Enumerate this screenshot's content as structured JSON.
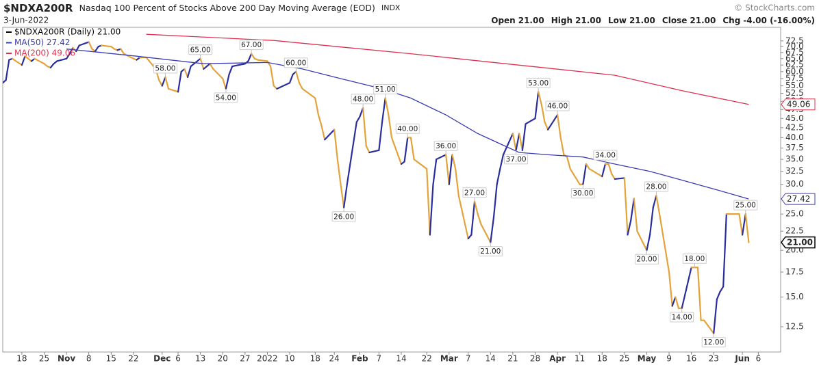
{
  "chart_data": {
    "type": "line",
    "title": "$NDXA200R",
    "subtitle": "Nasdaq 100 Percent of Stocks Above 200 Day Moving Average (EOD)",
    "exchange": "INDX",
    "date": "3-Jun-2022",
    "source": "© StockCharts.com",
    "quote": [
      {
        "label": "Open",
        "value": "21.00"
      },
      {
        "label": "High",
        "value": "21.00"
      },
      {
        "label": "Low",
        "value": "21.00"
      },
      {
        "label": "Close",
        "value": "21.00"
      },
      {
        "label": "Chg",
        "value": "-4.00 (-16.00%)"
      }
    ],
    "log_y": true,
    "grid": false,
    "xlim": [
      "2021-10-12",
      "2022-06-13"
    ],
    "ylim": [
      10.7,
      78.8
    ],
    "xticks": [
      {
        "value": "2021-10-18",
        "label": "18"
      },
      {
        "value": "2021-10-25",
        "label": "25"
      },
      {
        "value": "2021-11-01",
        "label": "Nov"
      },
      {
        "value": "2021-11-08",
        "label": "8"
      },
      {
        "value": "2021-11-15",
        "label": "15"
      },
      {
        "value": "2021-11-22",
        "label": "22"
      },
      {
        "value": "2021-12-01",
        "label": "Dec"
      },
      {
        "value": "2021-12-06",
        "label": "6"
      },
      {
        "value": "2021-12-13",
        "label": "13"
      },
      {
        "value": "2021-12-20",
        "label": "20"
      },
      {
        "value": "2021-12-27",
        "label": "27"
      },
      {
        "value": "2022-01-03",
        "label": "2022"
      },
      {
        "value": "2022-01-10",
        "label": "10"
      },
      {
        "value": "2022-01-18",
        "label": "18"
      },
      {
        "value": "2022-01-24",
        "label": "24"
      },
      {
        "value": "2022-02-01",
        "label": "Feb"
      },
      {
        "value": "2022-02-07",
        "label": "7"
      },
      {
        "value": "2022-02-14",
        "label": "14"
      },
      {
        "value": "2022-02-22",
        "label": "22"
      },
      {
        "value": "2022-03-01",
        "label": "Mar"
      },
      {
        "value": "2022-03-07",
        "label": "7"
      },
      {
        "value": "2022-03-14",
        "label": "14"
      },
      {
        "value": "2022-03-21",
        "label": "21"
      },
      {
        "value": "2022-03-28",
        "label": "28"
      },
      {
        "value": "2022-04-04",
        "label": "Apr"
      },
      {
        "value": "2022-04-11",
        "label": "11"
      },
      {
        "value": "2022-04-18",
        "label": "18"
      },
      {
        "value": "2022-04-25",
        "label": "25"
      },
      {
        "value": "2022-05-02",
        "label": "May"
      },
      {
        "value": "2022-05-09",
        "label": "9"
      },
      {
        "value": "2022-05-16",
        "label": "16"
      },
      {
        "value": "2022-05-23",
        "label": "23"
      },
      {
        "value": "2022-06-01",
        "label": "Jun"
      },
      {
        "value": "2022-06-06",
        "label": "6"
      }
    ],
    "yticks": [
      12.5,
      {
        "value": 15,
        "label": "15.0"
      },
      17.5,
      {
        "value": 20,
        "label": "20.0"
      },
      22.5,
      {
        "value": 25,
        "label": "25.0"
      },
      27.5,
      {
        "value": 30,
        "label": "30.0"
      },
      32.5,
      {
        "value": 35,
        "label": "35.0"
      },
      37.5,
      {
        "value": 40,
        "label": "40.0"
      },
      42.5,
      {
        "value": 45,
        "label": "45.0"
      },
      47.5,
      {
        "value": 50,
        "label": "50.0"
      },
      52.5,
      {
        "value": 55,
        "label": "55.0"
      },
      57.5,
      {
        "value": 60,
        "label": "60.0"
      },
      62.5,
      {
        "value": 65,
        "label": "65.0"
      },
      67.5,
      {
        "value": 70,
        "label": "70.0"
      },
      72.5
    ],
    "series": [
      {
        "name": "$NDXA200R (Daily) 21.00",
        "color": "#2a2d9c",
        "down_color": "#e3a33a",
        "legend_color": "#000000",
        "last_label": "21.00",
        "x": [
          "2021-10-12",
          "2021-10-13",
          "2021-10-14",
          "2021-10-15",
          "2021-10-18",
          "2021-10-19",
          "2021-10-20",
          "2021-10-21",
          "2021-10-22",
          "2021-10-25",
          "2021-10-26",
          "2021-10-27",
          "2021-10-28",
          "2021-10-29",
          "2021-11-01",
          "2021-11-02",
          "2021-11-03",
          "2021-11-04",
          "2021-11-05",
          "2021-11-08",
          "2021-11-09",
          "2021-11-10",
          "2021-11-11",
          "2021-11-12",
          "2021-11-15",
          "2021-11-16",
          "2021-11-17",
          "2021-11-18",
          "2021-11-19",
          "2021-11-22",
          "2021-11-23",
          "2021-11-24",
          "2021-11-26",
          "2021-11-29",
          "2021-11-30",
          "2021-12-01",
          "2021-12-02",
          "2021-12-03",
          "2021-12-06",
          "2021-12-07",
          "2021-12-08",
          "2021-12-09",
          "2021-12-10",
          "2021-12-13",
          "2021-12-14",
          "2021-12-15",
          "2021-12-16",
          "2021-12-17",
          "2021-12-20",
          "2021-12-21",
          "2021-12-22",
          "2021-12-23",
          "2021-12-27",
          "2021-12-28",
          "2021-12-29",
          "2021-12-30",
          "2021-12-31",
          "2022-01-03",
          "2022-01-04",
          "2022-01-05",
          "2022-01-06",
          "2022-01-07",
          "2022-01-10",
          "2022-01-11",
          "2022-01-12",
          "2022-01-13",
          "2022-01-14",
          "2022-01-18",
          "2022-01-19",
          "2022-01-20",
          "2022-01-21",
          "2022-01-24",
          "2022-01-25",
          "2022-01-26",
          "2022-01-27",
          "2022-01-28",
          "2022-01-31",
          "2022-02-01",
          "2022-02-02",
          "2022-02-03",
          "2022-02-04",
          "2022-02-07",
          "2022-02-08",
          "2022-02-09",
          "2022-02-10",
          "2022-02-11",
          "2022-02-14",
          "2022-02-15",
          "2022-02-16",
          "2022-02-17",
          "2022-02-18",
          "2022-02-22",
          "2022-02-23",
          "2022-02-24",
          "2022-02-25",
          "2022-02-28",
          "2022-03-01",
          "2022-03-02",
          "2022-03-03",
          "2022-03-04",
          "2022-03-07",
          "2022-03-08",
          "2022-03-09",
          "2022-03-10",
          "2022-03-11",
          "2022-03-14",
          "2022-03-15",
          "2022-03-16",
          "2022-03-17",
          "2022-03-18",
          "2022-03-21",
          "2022-03-22",
          "2022-03-23",
          "2022-03-24",
          "2022-03-25",
          "2022-03-28",
          "2022-03-29",
          "2022-03-30",
          "2022-03-31",
          "2022-04-01",
          "2022-04-04",
          "2022-04-05",
          "2022-04-06",
          "2022-04-07",
          "2022-04-08",
          "2022-04-11",
          "2022-04-12",
          "2022-04-13",
          "2022-04-14",
          "2022-04-18",
          "2022-04-19",
          "2022-04-20",
          "2022-04-21",
          "2022-04-22",
          "2022-04-25",
          "2022-04-26",
          "2022-04-27",
          "2022-04-28",
          "2022-04-29",
          "2022-05-02",
          "2022-05-03",
          "2022-05-04",
          "2022-05-05",
          "2022-05-06",
          "2022-05-09",
          "2022-05-10",
          "2022-05-11",
          "2022-05-12",
          "2022-05-13",
          "2022-05-16",
          "2022-05-17",
          "2022-05-18",
          "2022-05-19",
          "2022-05-20",
          "2022-05-23",
          "2022-05-24",
          "2022-05-25",
          "2022-05-26",
          "2022-05-27",
          "2022-05-31",
          "2022-06-01",
          "2022-06-02",
          "2022-06-03"
        ],
        "values": [
          56,
          57,
          64.5,
          65,
          62.5,
          66,
          65,
          64,
          65,
          63,
          62,
          61.5,
          63,
          64,
          65,
          67,
          69.5,
          68,
          70.5,
          72,
          69,
          68,
          70,
          70.5,
          70,
          69,
          68.5,
          69,
          67,
          65,
          64.5,
          65.5,
          65.5,
          61,
          57,
          55,
          58,
          54,
          53,
          60,
          61,
          58,
          62,
          65,
          61,
          62,
          63,
          61,
          57.5,
          54,
          59,
          62,
          63,
          64,
          67,
          65,
          64.5,
          64,
          62,
          55,
          54,
          54.5,
          56,
          59,
          60,
          56,
          54,
          51,
          46,
          43,
          39.5,
          42,
          35,
          30,
          26,
          30,
          44,
          45.5,
          48,
          38,
          36.5,
          37,
          44,
          51,
          46,
          40,
          34,
          34.5,
          40,
          40,
          35,
          33,
          22,
          30,
          35,
          36,
          30,
          36,
          33,
          28,
          21.5,
          22,
          27,
          25,
          23.5,
          21,
          24.5,
          30,
          33,
          36,
          41,
          37,
          41,
          37,
          43.5,
          45,
          53,
          49,
          44,
          42,
          46,
          40,
          36,
          35.5,
          33,
          30,
          30,
          34,
          33,
          31.5,
          34,
          34,
          32,
          31,
          31.2,
          22,
          24,
          27.5,
          22.5,
          20,
          22,
          26,
          28,
          25,
          17.5,
          14.2,
          15,
          14,
          14,
          18,
          18,
          18,
          13,
          13,
          12,
          14.8,
          15.5,
          16,
          25,
          25,
          22,
          25,
          21
        ]
      },
      {
        "name": "MA(50) 27.42",
        "color": "#3a3db3",
        "last_label": "27.42",
        "x": [
          "2021-11-01",
          "2021-11-23",
          "2021-12-14",
          "2022-01-03",
          "2022-01-14",
          "2022-01-26",
          "2022-02-08",
          "2022-02-17",
          "2022-02-28",
          "2022-03-10",
          "2022-03-17",
          "2022-03-23",
          "2022-04-01",
          "2022-04-12",
          "2022-04-22",
          "2022-05-03",
          "2022-05-13",
          "2022-05-24",
          "2022-06-03"
        ],
        "values": [
          69,
          66,
          63,
          63.5,
          61,
          57.5,
          54,
          51,
          46,
          41,
          38.5,
          36.5,
          36,
          35.5,
          34,
          32.5,
          30.8,
          29,
          27.42
        ]
      },
      {
        "name": "MA(200) 49.06",
        "color": "#e0304f",
        "last_label": "49.06",
        "x": [
          "2021-11-26",
          "2022-01-05",
          "2022-02-17",
          "2022-04-01",
          "2022-04-22",
          "2022-05-13",
          "2022-06-03"
        ],
        "values": [
          75.5,
          72.7,
          67,
          61.3,
          58.7,
          53.4,
          49.06
        ]
      }
    ],
    "annotations": [
      {
        "x": "2021-12-02",
        "y": 58,
        "label": "58.00",
        "position": "above"
      },
      {
        "x": "2021-12-13",
        "y": 65,
        "label": "65.00",
        "position": "above"
      },
      {
        "x": "2021-12-21",
        "y": 54,
        "label": "54.00",
        "position": "below"
      },
      {
        "x": "2021-12-29",
        "y": 67,
        "label": "67.00",
        "position": "above"
      },
      {
        "x": "2022-01-12",
        "y": 60,
        "label": "60.00",
        "position": "above"
      },
      {
        "x": "2022-01-27",
        "y": 26,
        "label": "26.00",
        "position": "below"
      },
      {
        "x": "2022-02-02",
        "y": 48,
        "label": "48.00",
        "position": "above"
      },
      {
        "x": "2022-02-09",
        "y": 51,
        "label": "51.00",
        "position": "above"
      },
      {
        "x": "2022-02-16",
        "y": 40,
        "label": "40.00",
        "position": "above"
      },
      {
        "x": "2022-02-28",
        "y": 36,
        "label": "36.00",
        "position": "above"
      },
      {
        "x": "2022-03-09",
        "y": 27,
        "label": "27.00",
        "position": "above"
      },
      {
        "x": "2022-03-14",
        "y": 21,
        "label": "21.00",
        "position": "below"
      },
      {
        "x": "2022-03-22",
        "y": 37,
        "label": "37.00",
        "position": "below"
      },
      {
        "x": "2022-03-29",
        "y": 53,
        "label": "53.00",
        "position": "above"
      },
      {
        "x": "2022-04-04",
        "y": 46,
        "label": "46.00",
        "position": "above"
      },
      {
        "x": "2022-04-12",
        "y": 30,
        "label": "30.00",
        "position": "below"
      },
      {
        "x": "2022-04-19",
        "y": 34,
        "label": "34.00",
        "position": "above"
      },
      {
        "x": "2022-05-02",
        "y": 20,
        "label": "20.00",
        "position": "below"
      },
      {
        "x": "2022-05-05",
        "y": 28,
        "label": "28.00",
        "position": "above"
      },
      {
        "x": "2022-05-13",
        "y": 14,
        "label": "14.00",
        "position": "below"
      },
      {
        "x": "2022-05-17",
        "y": 18,
        "label": "18.00",
        "position": "above"
      },
      {
        "x": "2022-05-23",
        "y": 12,
        "label": "12.00",
        "position": "below"
      },
      {
        "x": "2022-06-02",
        "y": 25,
        "label": "25.00",
        "position": "above"
      }
    ]
  }
}
